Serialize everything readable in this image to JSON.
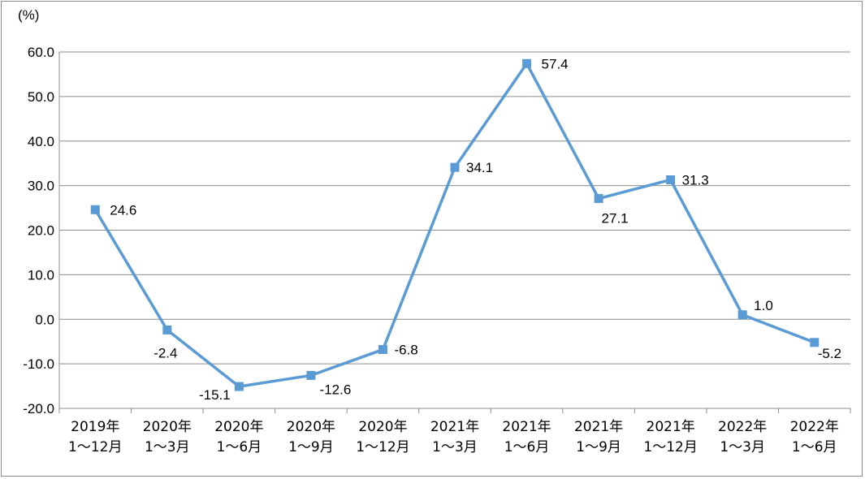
{
  "chart_data": {
    "type": "line",
    "ylabel": "(%)",
    "ylim": [
      -20,
      60
    ],
    "yticks": [
      -20,
      -10,
      0,
      10,
      20,
      30,
      40,
      50,
      60
    ],
    "ytick_labels": [
      "-20.0",
      "-10.0",
      "0.0",
      "10.0",
      "20.0",
      "30.0",
      "40.0",
      "50.0",
      "60.0"
    ],
    "categories": [
      [
        "2019年",
        "1～12月"
      ],
      [
        "2020年",
        "1～3月"
      ],
      [
        "2020年",
        "1～6月"
      ],
      [
        "2020年",
        "1～9月"
      ],
      [
        "2020年",
        "1～12月"
      ],
      [
        "2021年",
        "1～3月"
      ],
      [
        "2021年",
        "1～6月"
      ],
      [
        "2021年",
        "1～9月"
      ],
      [
        "2021年",
        "1～12月"
      ],
      [
        "2022年",
        "1～3月"
      ],
      [
        "2022年",
        "1～6月"
      ]
    ],
    "series": [
      {
        "values": [
          24.6,
          -2.4,
          -15.1,
          -12.6,
          -6.8,
          34.1,
          57.4,
          27.1,
          31.3,
          1.0,
          -5.2
        ],
        "labels": [
          "24.6",
          "-2.4",
          "-15.1",
          "-12.6",
          "-6.8",
          "34.1",
          "57.4",
          "27.1",
          "31.3",
          "1.0",
          "-5.2"
        ],
        "color": "#5b9bd5"
      }
    ],
    "grid": true,
    "legend": "none"
  }
}
